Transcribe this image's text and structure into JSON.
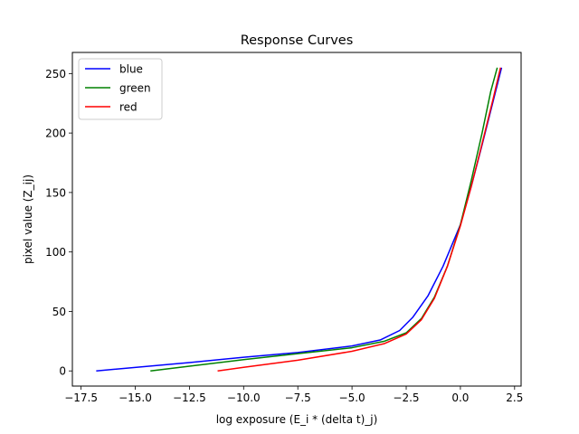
{
  "chart_data": {
    "type": "line",
    "title": "Response Curves",
    "xlabel": "log exposure (E_i * (delta t)_j)",
    "ylabel": "pixel value (Z_ij)",
    "xlim": [
      -17.9,
      2.8
    ],
    "ylim": [
      -12.75,
      267.75
    ],
    "x_ticks": [
      -17.5,
      -15.0,
      -12.5,
      -10.0,
      -7.5,
      -5.0,
      -2.5,
      0.0,
      2.5
    ],
    "x_tick_labels": [
      "−17.5",
      "−15.0",
      "−12.5",
      "−10.0",
      "−7.5",
      "−5.0",
      "−2.5",
      "0.0",
      "2.5"
    ],
    "y_ticks": [
      0,
      50,
      100,
      150,
      200,
      250
    ],
    "y_tick_labels": [
      "0",
      "50",
      "100",
      "150",
      "200",
      "250"
    ],
    "grid": false,
    "legend_position": "upper-left",
    "series": [
      {
        "name": "blue",
        "color": "#0000ff",
        "points": [
          [
            -16.8,
            0
          ],
          [
            -12.5,
            7
          ],
          [
            -10,
            11.5
          ],
          [
            -7.5,
            15.5
          ],
          [
            -5,
            21
          ],
          [
            -3.7,
            26
          ],
          [
            -2.8,
            34
          ],
          [
            -2.2,
            45
          ],
          [
            -1.5,
            63
          ],
          [
            -0.8,
            88
          ],
          [
            0,
            123
          ],
          [
            0.5,
            155
          ],
          [
            1,
            190
          ],
          [
            1.5,
            226
          ],
          [
            1.9,
            255
          ]
        ]
      },
      {
        "name": "green",
        "color": "#008000",
        "points": [
          [
            -14.3,
            0
          ],
          [
            -12.5,
            4
          ],
          [
            -10,
            9.5
          ],
          [
            -7.5,
            14.5
          ],
          [
            -5,
            19.5
          ],
          [
            -3.5,
            25
          ],
          [
            -2.5,
            32
          ],
          [
            -1.8,
            44
          ],
          [
            -1.2,
            62
          ],
          [
            -0.6,
            88
          ],
          [
            0,
            123
          ],
          [
            0.5,
            160
          ],
          [
            1,
            200
          ],
          [
            1.4,
            235
          ],
          [
            1.7,
            255
          ]
        ]
      },
      {
        "name": "red",
        "color": "#ff0000",
        "points": [
          [
            -11.2,
            0
          ],
          [
            -10,
            3
          ],
          [
            -7.5,
            9
          ],
          [
            -5,
            16.5
          ],
          [
            -3.5,
            23
          ],
          [
            -2.5,
            31
          ],
          [
            -1.8,
            43
          ],
          [
            -1.2,
            61
          ],
          [
            -0.6,
            88
          ],
          [
            0,
            122
          ],
          [
            0.5,
            155
          ],
          [
            1,
            191
          ],
          [
            1.5,
            228
          ],
          [
            1.85,
            255
          ]
        ]
      }
    ]
  }
}
